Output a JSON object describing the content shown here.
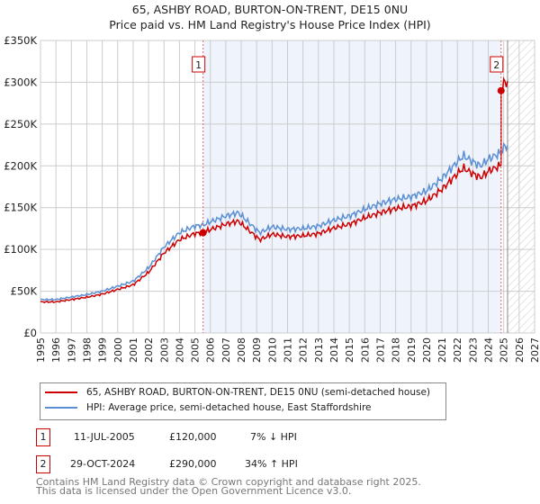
{
  "title": "65, ASHBY ROAD, BURTON-ON-TRENT, DE15 0NU",
  "subtitle": "Price paid vs. HM Land Registry's House Price Index (HPI)",
  "chart_data": {
    "type": "line",
    "xlim": [
      1995,
      2027
    ],
    "ylim": [
      0,
      350000
    ],
    "x_ticks": [
      "1995",
      "1996",
      "1997",
      "1998",
      "1999",
      "2000",
      "2001",
      "2002",
      "2003",
      "2004",
      "2005",
      "2006",
      "2007",
      "2008",
      "2009",
      "2010",
      "2011",
      "2012",
      "2013",
      "2014",
      "2015",
      "2016",
      "2017",
      "2018",
      "2019",
      "2020",
      "2021",
      "2022",
      "2023",
      "2024",
      "2025",
      "2026",
      "2027"
    ],
    "y_ticks": [
      {
        "v": 0,
        "label": "£0"
      },
      {
        "v": 50000,
        "label": "£50K"
      },
      {
        "v": 100000,
        "label": "£100K"
      },
      {
        "v": 150000,
        "label": "£150K"
      },
      {
        "v": 200000,
        "label": "£200K"
      },
      {
        "v": 250000,
        "label": "£250K"
      },
      {
        "v": 300000,
        "label": "£300K"
      },
      {
        "v": 350000,
        "label": "£350K"
      }
    ],
    "grid": true,
    "hpi_series": {
      "name": "HPI: Average price, semi-detached house, East Staffordshire",
      "color": "#5b8fd4",
      "x": [
        1995,
        1996,
        1997,
        1998,
        1999,
        2000,
        2001,
        2002,
        2003,
        2004,
        2005,
        2005.53,
        2006,
        2007,
        2007.8,
        2008.5,
        2009.2,
        2010,
        2011,
        2012,
        2013,
        2014,
        2015,
        2016,
        2017,
        2018,
        2019,
        2020,
        2021,
        2022,
        2022.4,
        2023,
        2023.5,
        2024,
        2024.83,
        2025,
        2025.3
      ],
      "y": [
        40000,
        40000,
        43000,
        46000,
        50000,
        56000,
        62000,
        78000,
        103000,
        120000,
        128000,
        129000,
        133000,
        140000,
        144000,
        132000,
        120000,
        127000,
        124000,
        125000,
        128000,
        135000,
        140000,
        148000,
        155000,
        160000,
        163000,
        170000,
        185000,
        205000,
        212000,
        205000,
        200000,
        208000,
        216000,
        222000,
        225000
      ]
    },
    "price_series": {
      "name": "65, ASHBY ROAD, BURTON-ON-TRENT, DE15 0NU (semi-detached house)",
      "color": "#cc0000"
    },
    "sales": [
      {
        "id": "1",
        "x": 2005.53,
        "price": 120000,
        "date": "11-JUL-2005",
        "price_label": "£120,000",
        "hpi_delta": "7% ↓ HPI"
      },
      {
        "id": "2",
        "x": 2024.83,
        "price": 290000,
        "date": "29-OCT-2024",
        "price_label": "£290,000",
        "hpi_delta": "34% ↑ HPI"
      }
    ],
    "forecast_start": 2025.25,
    "legend_position": "bottom"
  },
  "footer": {
    "line1": "Contains HM Land Registry data © Crown copyright and database right 2025.",
    "line2": "This data is licensed under the Open Government Licence v3.0."
  }
}
